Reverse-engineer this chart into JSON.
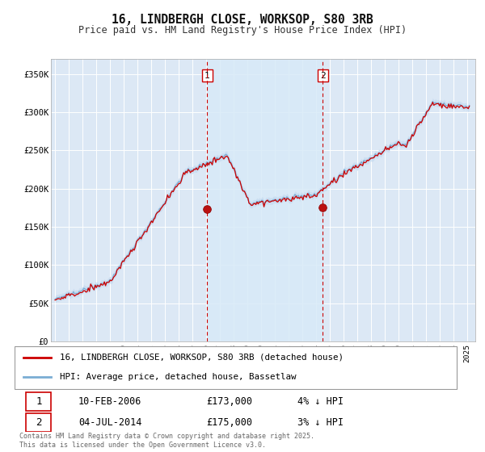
{
  "title": "16, LINDBERGH CLOSE, WORKSOP, S80 3RB",
  "subtitle": "Price paid vs. HM Land Registry's House Price Index (HPI)",
  "background_color": "#ffffff",
  "plot_bg_color": "#dce8f5",
  "grid_color": "#ffffff",
  "hpi_color": "#7aadd4",
  "hpi_band_color": "#c5daf0",
  "price_color": "#cc0000",
  "shade_between_color": "#ddeeff",
  "ylim": [
    0,
    370000
  ],
  "ytick_labels": [
    "£0",
    "£50K",
    "£100K",
    "£150K",
    "£200K",
    "£250K",
    "£300K",
    "£350K"
  ],
  "ytick_values": [
    0,
    50000,
    100000,
    150000,
    200000,
    250000,
    300000,
    350000
  ],
  "sale1_date": 2006.08,
  "sale1_price": 173000,
  "sale2_date": 2014.5,
  "sale2_price": 175000,
  "legend1": "16, LINDBERGH CLOSE, WORKSOP, S80 3RB (detached house)",
  "legend2": "HPI: Average price, detached house, Bassetlaw",
  "table_row1_num": "1",
  "table_row1_date": "10-FEB-2006",
  "table_row1_price": "£173,000",
  "table_row1_info": "4% ↓ HPI",
  "table_row2_num": "2",
  "table_row2_date": "04-JUL-2014",
  "table_row2_price": "£175,000",
  "table_row2_info": "3% ↓ HPI",
  "footer": "Contains HM Land Registry data © Crown copyright and database right 2025.\nThis data is licensed under the Open Government Licence v3.0."
}
